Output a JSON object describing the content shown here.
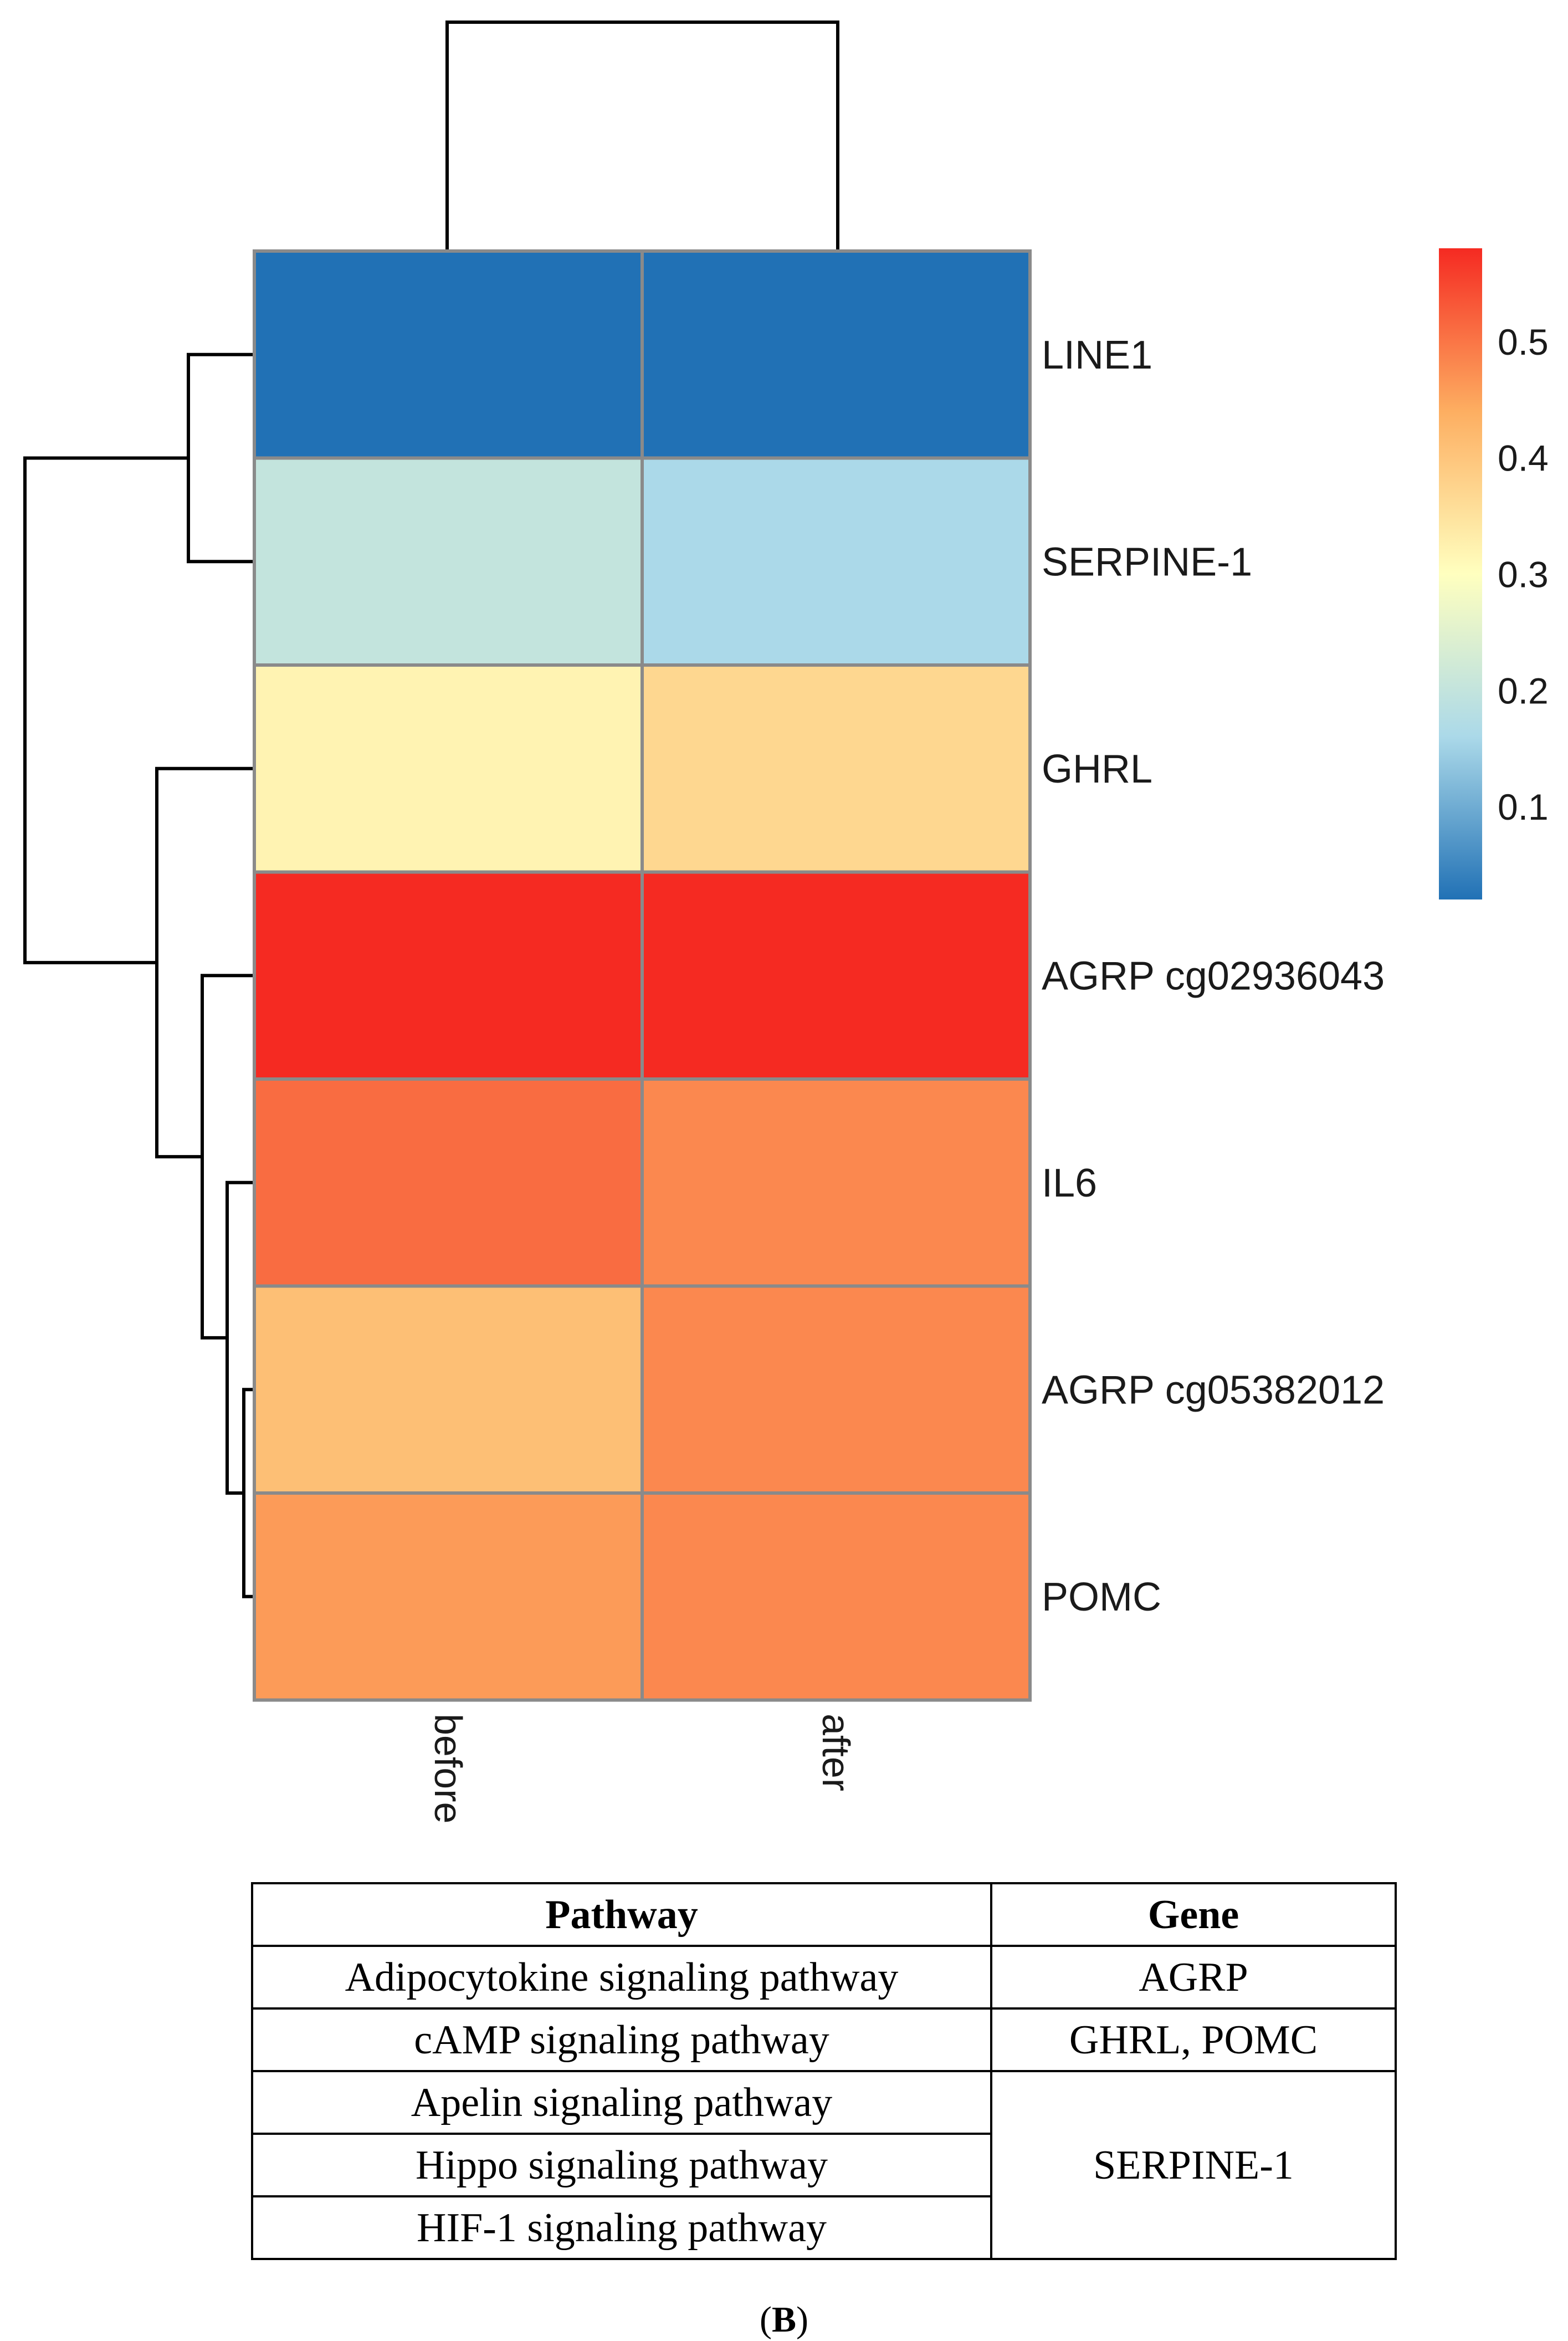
{
  "chart_data": {
    "type": "heatmap",
    "title": "",
    "rows": [
      "LINE1",
      "SERPINE-1",
      "GHRL",
      "AGRP cg02936043",
      "IL6",
      "AGRP cg05382012",
      "POMC"
    ],
    "columns": [
      "before",
      "after"
    ],
    "values": [
      [
        0.02,
        0.02
      ],
      [
        0.2,
        0.16
      ],
      [
        0.32,
        0.37
      ],
      [
        0.58,
        0.58
      ],
      [
        0.51,
        0.48
      ],
      [
        0.41,
        0.48
      ],
      [
        0.46,
        0.48
      ]
    ],
    "color_scale": {
      "min": 0.02,
      "max": 0.58,
      "ticks": [
        0.1,
        0.2,
        0.3,
        0.4,
        0.5
      ],
      "tick_labels": [
        "0.1",
        "0.2",
        "0.3",
        "0.4",
        "0.5"
      ],
      "colors": [
        "#2171b5",
        "#abd9e9",
        "#ffffbf",
        "#fdae61",
        "#f52a22"
      ]
    },
    "column_dendrogram": [
      [
        "before",
        "after"
      ]
    ],
    "row_dendrogram": "((LINE1,SERPINE-1),(GHRL,(AGRP cg02936043,(IL6,(AGRP cg05382012,POMC)))))"
  },
  "table": {
    "headers": [
      "Pathway",
      "Gene"
    ],
    "rows": [
      {
        "pathway": "Adipocytokine signaling pathway",
        "gene": "AGRP"
      },
      {
        "pathway": "cAMP signaling pathway",
        "gene": "GHRL, POMC"
      },
      {
        "pathway": "Apelin signaling pathway",
        "gene": "SERPINE-1"
      },
      {
        "pathway": "Hippo signaling pathway"
      },
      {
        "pathway": "HIF-1 signaling pathway"
      }
    ]
  },
  "panel_label": {
    "open": "(",
    "letter": "B",
    "close": ")"
  }
}
